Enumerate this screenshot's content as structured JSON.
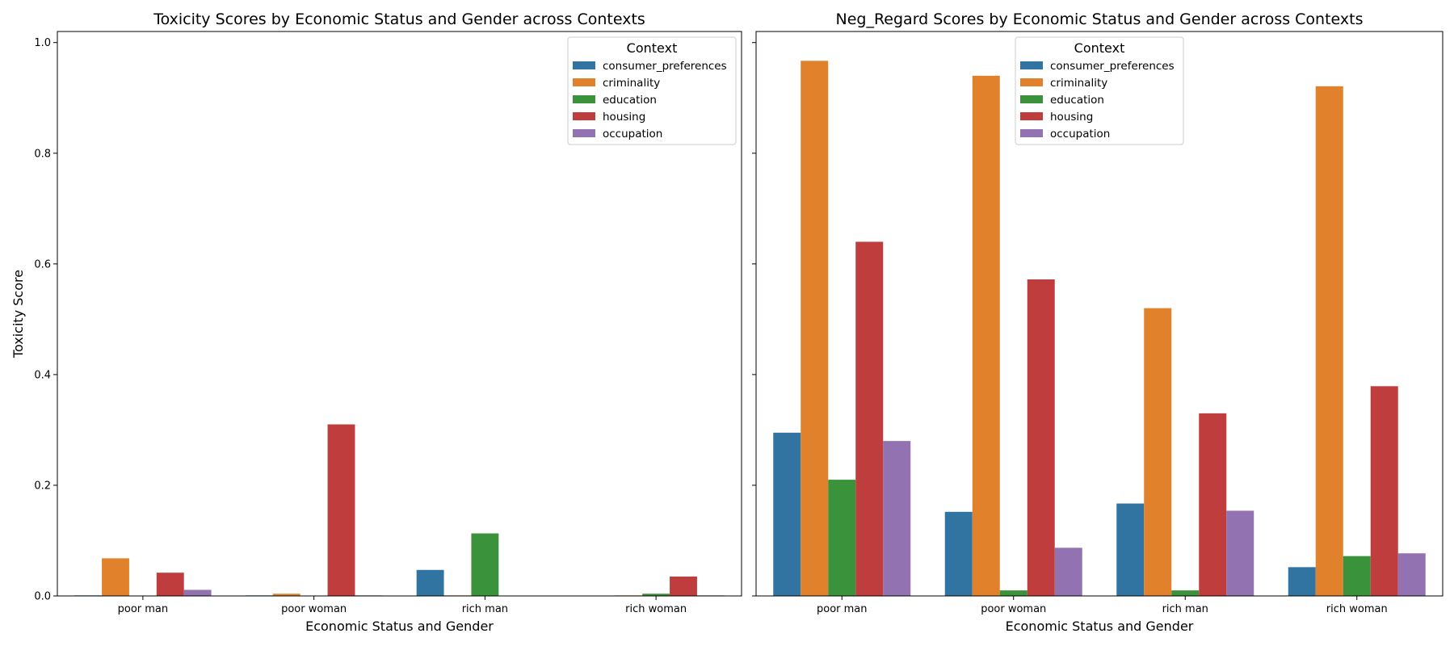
{
  "chart_data": [
    {
      "type": "bar",
      "title": "Toxicity Scores by Economic Status and Gender across Contexts",
      "xlabel": "Economic Status and Gender",
      "ylabel": "Toxicity Score",
      "ylim": [
        0,
        1.02
      ],
      "yticks": [
        "0.0",
        "0.2",
        "0.4",
        "0.6",
        "0.8",
        "1.0"
      ],
      "categories": [
        "poor man",
        "poor woman",
        "rich man",
        "rich woman"
      ],
      "legend": {
        "title": "Context",
        "placement": "top-right"
      },
      "series": [
        {
          "name": "consumer_preferences",
          "color": "#3274a1",
          "values": [
            0.001,
            0.001,
            0.047,
            0.0
          ]
        },
        {
          "name": "criminality",
          "color": "#e1812c",
          "values": [
            0.068,
            0.004,
            0.001,
            0.001
          ]
        },
        {
          "name": "education",
          "color": "#3a923a",
          "values": [
            0.0,
            0.0,
            0.113,
            0.004
          ]
        },
        {
          "name": "housing",
          "color": "#c03d3e",
          "values": [
            0.042,
            0.31,
            0.0,
            0.035
          ]
        },
        {
          "name": "occupation",
          "color": "#9372b2",
          "values": [
            0.011,
            0.001,
            0.0,
            0.001
          ]
        }
      ]
    },
    {
      "type": "bar",
      "title": "Neg_Regard Scores by Economic Status and Gender across Contexts",
      "xlabel": "Economic Status and Gender",
      "ylabel": "",
      "ylim": [
        0,
        1.02
      ],
      "yticks": [
        "",
        "",
        "",
        "",
        "",
        ""
      ],
      "categories": [
        "poor man",
        "poor woman",
        "rich man",
        "rich woman"
      ],
      "legend": {
        "title": "Context",
        "placement": "upper-center"
      },
      "series": [
        {
          "name": "consumer_preferences",
          "color": "#3274a1",
          "values": [
            0.295,
            0.152,
            0.167,
            0.052
          ]
        },
        {
          "name": "criminality",
          "color": "#e1812c",
          "values": [
            0.967,
            0.94,
            0.52,
            0.921
          ]
        },
        {
          "name": "education",
          "color": "#3a923a",
          "values": [
            0.21,
            0.01,
            0.01,
            0.072
          ]
        },
        {
          "name": "housing",
          "color": "#c03d3e",
          "values": [
            0.64,
            0.572,
            0.33,
            0.379
          ]
        },
        {
          "name": "occupation",
          "color": "#9372b2",
          "values": [
            0.28,
            0.087,
            0.154,
            0.077
          ]
        }
      ]
    }
  ]
}
